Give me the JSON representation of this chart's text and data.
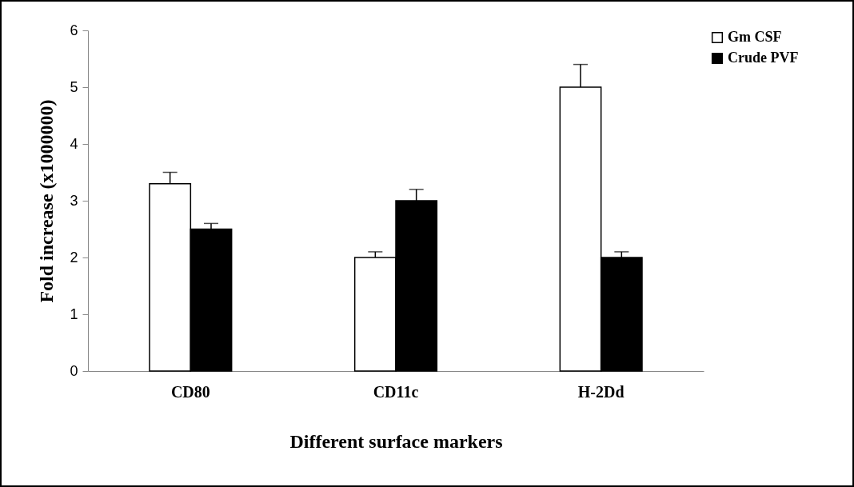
{
  "chart_data": {
    "type": "bar",
    "xlabel": "Different surface markers",
    "ylabel": "Fold increase (x1000000)",
    "categories": [
      "CD80",
      "CD11c",
      "H-2Dd"
    ],
    "series": [
      {
        "name": "Gm CSF",
        "color": "#ffffff",
        "values": [
          3.3,
          2.0,
          5.0
        ],
        "errors": [
          [
            3.3,
            3.5
          ],
          [
            2.0,
            2.1
          ],
          [
            5.0,
            5.4
          ]
        ]
      },
      {
        "name": "Crude PVF",
        "color": "#000000",
        "values": [
          2.5,
          3.0,
          2.0
        ],
        "errors": [
          [
            2.5,
            2.6
          ],
          [
            3.0,
            3.2
          ],
          [
            2.0,
            2.1
          ]
        ]
      }
    ],
    "ylim": [
      0,
      6
    ],
    "yticks": [
      0,
      1,
      2,
      3,
      4,
      5,
      6
    ],
    "legend": "top right"
  }
}
